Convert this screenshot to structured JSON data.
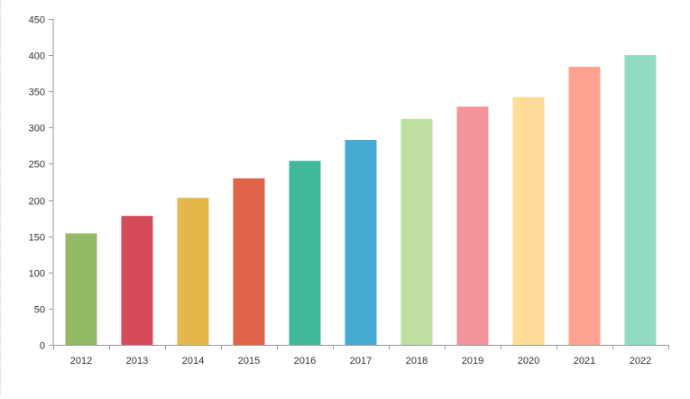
{
  "chart_data": {
    "type": "bar",
    "title": "",
    "xlabel": "",
    "ylabel": "",
    "categories": [
      "2012",
      "2013",
      "2014",
      "2015",
      "2016",
      "2017",
      "2018",
      "2019",
      "2020",
      "2021",
      "2022"
    ],
    "values": [
      154,
      178,
      203,
      230,
      254,
      283,
      312,
      329,
      342,
      384,
      400
    ],
    "ylim": [
      0,
      450
    ],
    "yticks": [
      "0",
      "50",
      "100",
      "150",
      "200",
      "250",
      "300",
      "350",
      "400",
      "450"
    ],
    "grid": false,
    "legend": "none",
    "colors": [
      "#93bb65",
      "#d64b59",
      "#e4b74b",
      "#e0644a",
      "#41b99b",
      "#45abd2",
      "#bfdea2",
      "#f29499",
      "#fedb96",
      "#fea392",
      "#91dbc4"
    ],
    "axis_color": "#999999"
  }
}
